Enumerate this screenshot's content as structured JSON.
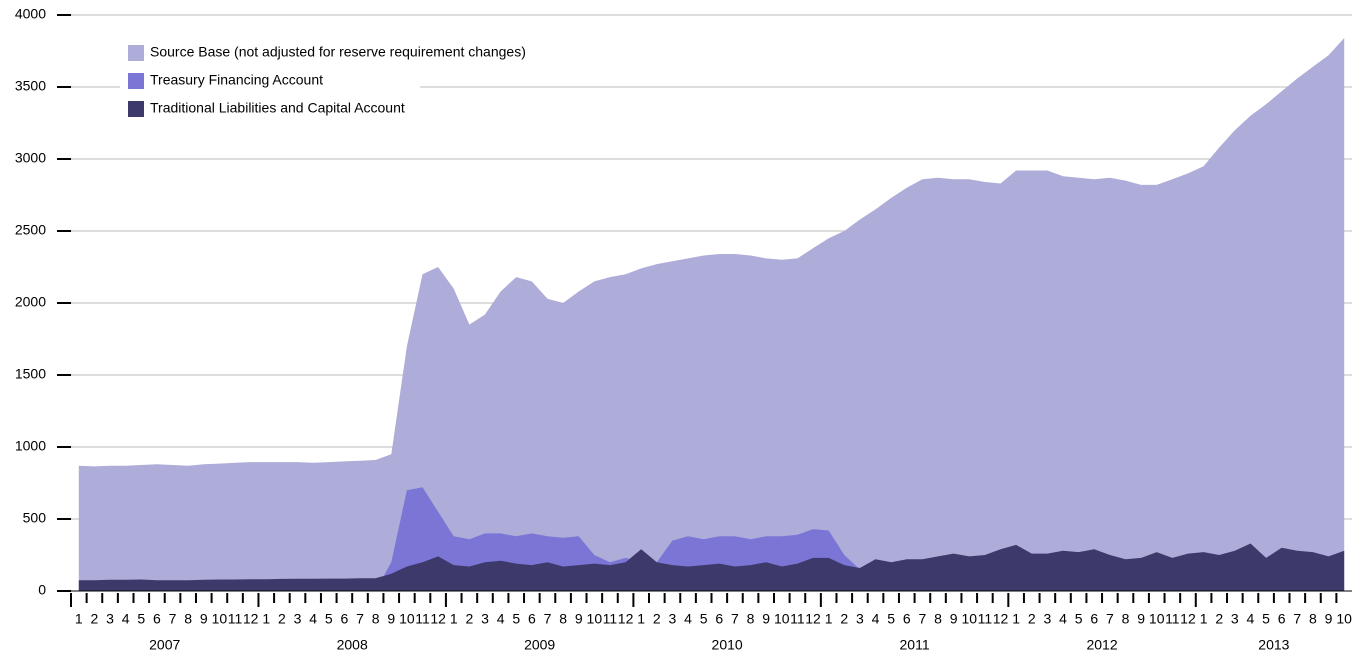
{
  "chart_data": {
    "type": "area",
    "categories": [
      "1",
      "2",
      "3",
      "4",
      "5",
      "6",
      "7",
      "8",
      "9",
      "10",
      "11",
      "12",
      "1",
      "2",
      "3",
      "4",
      "5",
      "6",
      "7",
      "8",
      "9",
      "10",
      "11",
      "12",
      "1",
      "2",
      "3",
      "4",
      "5",
      "6",
      "7",
      "8",
      "9",
      "10",
      "11",
      "12",
      "1",
      "2",
      "3",
      "4",
      "5",
      "6",
      "7",
      "8",
      "9",
      "10",
      "11",
      "12",
      "1",
      "2",
      "3",
      "4",
      "5",
      "6",
      "7",
      "8",
      "9",
      "10",
      "11",
      "12",
      "1",
      "2",
      "3",
      "4",
      "5",
      "6",
      "7",
      "8",
      "9",
      "10",
      "11",
      "12",
      "1",
      "2",
      "3",
      "4",
      "5",
      "6",
      "7",
      "8",
      "9",
      "10"
    ],
    "years": [
      "2007",
      "2008",
      "2009",
      "2010",
      "2011",
      "2012",
      "2013"
    ],
    "series": [
      {
        "name": "Source Base (not adjusted for reserve requirement changes)",
        "color": "#aeacd8",
        "values": [
          870,
          865,
          870,
          870,
          875,
          880,
          875,
          870,
          880,
          885,
          890,
          895,
          895,
          895,
          895,
          890,
          895,
          900,
          905,
          910,
          950,
          1700,
          2200,
          2250,
          2100,
          1850,
          1920,
          2080,
          2180,
          2150,
          2030,
          2000,
          2080,
          2150,
          2180,
          2200,
          2240,
          2270,
          2290,
          2310,
          2330,
          2340,
          2340,
          2330,
          2310,
          2300,
          2310,
          2380,
          2450,
          2500,
          2580,
          2650,
          2730,
          2800,
          2860,
          2870,
          2860,
          2860,
          2840,
          2830,
          2920,
          2920,
          2920,
          2880,
          2870,
          2860,
          2870,
          2850,
          2820,
          2820,
          2860,
          2900,
          2950,
          3080,
          3200,
          3300,
          3380,
          3470,
          3560,
          3640,
          3720,
          3840
        ]
      },
      {
        "name": "Treasury Financing Account",
        "color": "#7b76d6",
        "values": [
          0,
          0,
          0,
          0,
          0,
          0,
          0,
          0,
          0,
          0,
          0,
          0,
          0,
          0,
          0,
          0,
          0,
          0,
          0,
          0,
          200,
          700,
          720,
          550,
          380,
          360,
          400,
          400,
          380,
          400,
          380,
          370,
          380,
          250,
          200,
          230,
          200,
          200,
          350,
          380,
          360,
          380,
          380,
          360,
          380,
          380,
          390,
          430,
          420,
          250,
          150,
          0,
          0,
          0,
          0,
          0,
          0,
          0,
          0,
          0,
          0,
          0,
          0,
          0,
          0,
          0,
          0,
          0,
          0,
          0,
          0,
          0,
          0,
          0,
          0,
          0,
          0,
          0,
          0,
          0,
          0,
          0
        ]
      },
      {
        "name": "Traditional Liabilities and Capital Account",
        "color": "#3d3a6b",
        "values": [
          75,
          75,
          78,
          78,
          80,
          75,
          75,
          75,
          78,
          80,
          80,
          82,
          82,
          84,
          85,
          85,
          86,
          86,
          88,
          88,
          120,
          170,
          200,
          240,
          180,
          170,
          200,
          210,
          190,
          180,
          200,
          170,
          180,
          190,
          180,
          200,
          290,
          200,
          180,
          170,
          180,
          190,
          170,
          180,
          200,
          170,
          190,
          230,
          230,
          180,
          160,
          220,
          200,
          220,
          220,
          240,
          260,
          240,
          250,
          290,
          320,
          260,
          260,
          280,
          270,
          290,
          250,
          220,
          230,
          270,
          230,
          260,
          270,
          250,
          280,
          330,
          230,
          300,
          280,
          270,
          240,
          280
        ]
      }
    ],
    "ylim": [
      0,
      4000
    ],
    "yticks": [
      0,
      500,
      1000,
      1500,
      2000,
      2500,
      3000,
      3500,
      4000
    ],
    "grid": true
  }
}
